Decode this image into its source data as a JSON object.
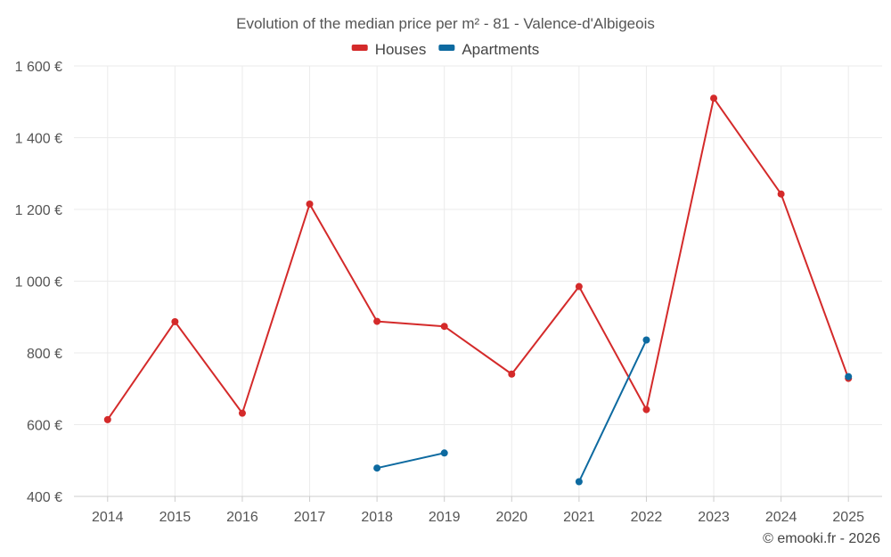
{
  "chart_data": {
    "type": "line",
    "title": "Evolution of the median price per m² - 81 - Valence-d'Albigeois",
    "x": [
      "2014",
      "2015",
      "2016",
      "2017",
      "2018",
      "2019",
      "2020",
      "2021",
      "2022",
      "2023",
      "2024",
      "2025"
    ],
    "series": [
      {
        "name": "Houses",
        "color": "#d42a2a",
        "values": [
          614,
          887,
          632,
          1215,
          888,
          874,
          741,
          985,
          642,
          1510,
          1243,
          729
        ]
      },
      {
        "name": "Apartments",
        "color": "#0d6aa0",
        "values": [
          null,
          null,
          null,
          null,
          479,
          521,
          null,
          441,
          836,
          null,
          null,
          734
        ]
      }
    ],
    "ylim": [
      400,
      1600
    ],
    "yticks": [
      400,
      600,
      800,
      1000,
      1200,
      1400,
      1600
    ],
    "ytick_labels": [
      "400 €",
      "600 €",
      "800 €",
      "1 000 €",
      "1 200 €",
      "1 400 €",
      "1 600 €"
    ],
    "grid": true,
    "legend_position": "top-center"
  },
  "credit": "© emooki.fr - 2026"
}
